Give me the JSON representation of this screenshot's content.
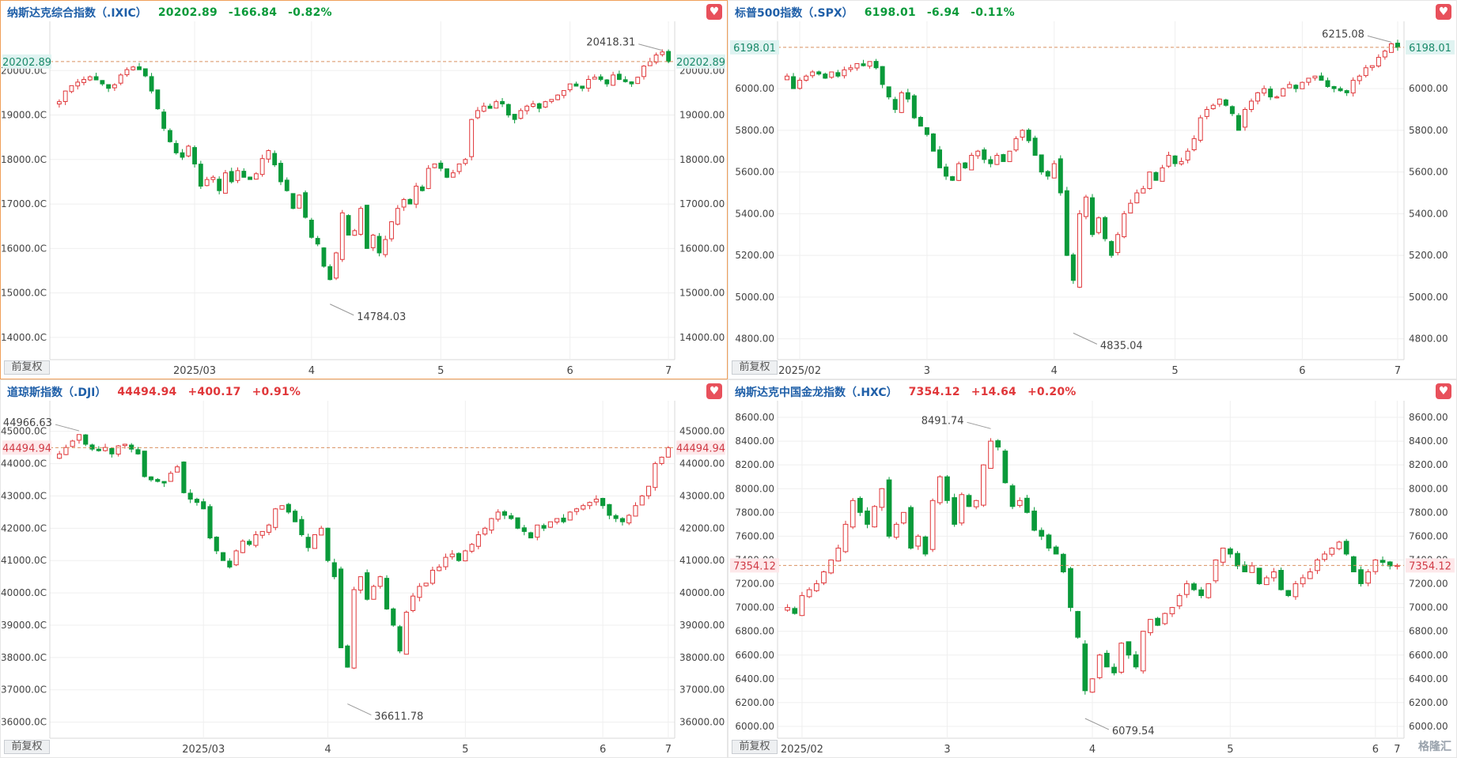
{
  "colors": {
    "up": "#e0373a",
    "down": "#0a9a3a",
    "grid": "#efefef",
    "last": "#d99060",
    "axis": "#444444"
  },
  "adjust_label": "前复权",
  "watermark": "格隆汇",
  "panels": [
    {
      "name": "纳斯达克综合指数（.IXIC）",
      "price": "20202.89",
      "change": "-166.84",
      "pct": "-0.82%",
      "dir": "down",
      "active": true,
      "high_label": "20418.31",
      "low_label": "14784.03",
      "last_label": "20202.89",
      "month_labels": [
        "2025/03",
        "4",
        "5",
        "6",
        "7"
      ],
      "chart_data": {
        "type": "candlestick",
        "ylim": [
          13500,
          21000
        ],
        "yticks": [
          14000,
          15000,
          16000,
          17000,
          18000,
          19000,
          20000
        ],
        "ytick_labels": [
          "14000.0C",
          "15000.0C",
          "16000.0C",
          "17000.0C",
          "18000.0C",
          "19000.0C",
          "20000.0C"
        ],
        "ytick_labels_right": [
          "14000.00",
          "15000.00",
          "16000.00",
          "17000.00",
          "18000.00",
          "19000.00",
          "20000.00"
        ],
        "last": 20202.89,
        "high": 20418.31,
        "low": 14784.03,
        "month_positions": [
          22,
          41,
          62,
          83,
          103
        ],
        "closes": [
          19300,
          19540,
          19660,
          19740,
          19800,
          19860,
          19790,
          19700,
          19600,
          19680,
          19900,
          20020,
          20080,
          20020,
          19880,
          19540,
          19140,
          18700,
          18400,
          18150,
          18050,
          18300,
          17900,
          17400,
          17550,
          17600,
          17300,
          17700,
          17500,
          17750,
          17600,
          17550,
          17680,
          18020,
          18200,
          17880,
          17500,
          17300,
          16900,
          17200,
          16700,
          16250,
          16100,
          15600,
          15300,
          15900,
          16800,
          16300,
          16400,
          16900,
          16000,
          16300,
          15900,
          16200,
          16600,
          16900,
          17100,
          17000,
          17400,
          17300,
          17800,
          17900,
          17800,
          17600,
          17700,
          17900,
          18000,
          18900,
          19100,
          19200,
          19150,
          19300,
          19250,
          19000,
          18900,
          19100,
          19200,
          19250,
          19150,
          19300,
          19350,
          19450,
          19550,
          19700,
          19650,
          19600,
          19800,
          19850,
          19800,
          19700,
          19900,
          19800,
          19750,
          19700,
          19850,
          20100,
          20200,
          20350,
          20418,
          20202
        ],
        "point_count": 100
      }
    },
    {
      "name": "标普500指数（.SPX）",
      "price": "6198.01",
      "change": "-6.94",
      "pct": "-0.11%",
      "dir": "down",
      "active": false,
      "high_label": "6215.08",
      "low_label": "4835.04",
      "last_label": "6198.01",
      "month_labels": [
        "2025/02",
        "3",
        "4",
        "5",
        "6",
        "7"
      ],
      "chart_data": {
        "type": "candlestick",
        "ylim": [
          4700,
          6300
        ],
        "yticks": [
          4800,
          5000,
          5200,
          5400,
          5600,
          5800,
          6000
        ],
        "ytick_labels": [
          "4800.00",
          "5000.00",
          "5200.00",
          "5400.00",
          "5600.00",
          "5800.00",
          "6000.00"
        ],
        "ytick_labels_right": [
          "4800.00",
          "5000.00",
          "5200.00",
          "5400.00",
          "5600.00",
          "5800.00",
          "6000.00"
        ],
        "last": 6198.01,
        "high": 6215.08,
        "low": 4835.04,
        "month_positions": [
          2,
          22,
          42,
          61,
          81,
          101
        ],
        "closes": [
          6060,
          6000,
          6040,
          6060,
          6080,
          6070,
          6050,
          6080,
          6060,
          6090,
          6100,
          6120,
          6110,
          6130,
          6100,
          6020,
          5960,
          5900,
          5980,
          5950,
          5860,
          5820,
          5780,
          5700,
          5620,
          5580,
          5560,
          5640,
          5620,
          5680,
          5700,
          5660,
          5640,
          5680,
          5650,
          5700,
          5760,
          5800,
          5750,
          5680,
          5600,
          5580,
          5640,
          5500,
          5200,
          5080,
          5400,
          5480,
          5300,
          5380,
          5280,
          5200,
          5300,
          5400,
          5450,
          5500,
          5520,
          5600,
          5560,
          5620,
          5680,
          5640,
          5650,
          5700,
          5760,
          5860,
          5900,
          5920,
          5950,
          5920,
          5880,
          5800,
          5900,
          5940,
          5980,
          6000,
          5960,
          5960,
          6000,
          6020,
          6000,
          6030,
          6050,
          6060,
          6040,
          6010,
          6000,
          5990,
          5980,
          6040,
          6060,
          6100,
          6110,
          6150,
          6180,
          6215,
          6198
        ],
        "point_count": 97
      }
    },
    {
      "name": "道琼斯指数（.DJI）",
      "price": "44494.94",
      "change": "+400.17",
      "pct": "+0.91%",
      "dir": "up",
      "active": false,
      "high_label": "44966.63",
      "low_label": "36611.78",
      "last_label": "44494.94",
      "month_labels": [
        "2025/03",
        "4",
        "5",
        "6",
        "7"
      ],
      "chart_data": {
        "type": "candlestick",
        "ylim": [
          35500,
          45800
        ],
        "yticks": [
          36000,
          37000,
          38000,
          39000,
          40000,
          41000,
          42000,
          43000,
          44000,
          45000
        ],
        "ytick_labels": [
          "36000.0C",
          "37000.0C",
          "38000.0C",
          "39000.0C",
          "40000.0C",
          "41000.0C",
          "42000.0C",
          "43000.0C",
          "44000.0C",
          "45000.0C"
        ],
        "ytick_labels_right": [
          "36000.00",
          "37000.00",
          "38000.00",
          "39000.00",
          "40000.00",
          "41000.00",
          "42000.00",
          "43000.00",
          "44000.00",
          "45000.00"
        ],
        "last": 44494.94,
        "high": 44966.63,
        "low": 36611.78,
        "month_positions": [
          22,
          41,
          62,
          83,
          103
        ],
        "closes": [
          44300,
          44500,
          44700,
          44900,
          44600,
          44450,
          44400,
          44500,
          44300,
          44550,
          44600,
          44450,
          44300,
          43600,
          43500,
          43450,
          43400,
          43700,
          43900,
          43100,
          42900,
          42800,
          42600,
          41700,
          41300,
          41000,
          40800,
          41300,
          41600,
          41500,
          41800,
          41900,
          42100,
          42600,
          42700,
          42500,
          42200,
          41800,
          41400,
          41800,
          42000,
          41000,
          40500,
          38300,
          37700,
          40100,
          40500,
          39800,
          40200,
          40500,
          39500,
          39000,
          38200,
          39400,
          39900,
          40200,
          40300,
          40700,
          40800,
          41100,
          41200,
          41000,
          41300,
          41500,
          41800,
          42000,
          42300,
          42500,
          42400,
          42300,
          42000,
          41900,
          41700,
          42100,
          42000,
          42200,
          42300,
          42200,
          42500,
          42600,
          42700,
          42800,
          42900,
          42700,
          42400,
          42300,
          42200,
          42400,
          42700,
          43000,
          43300,
          44000,
          44200,
          44494
        ],
        "point_count": 94
      }
    },
    {
      "name": "纳斯达克中国金龙指数（.HXC）",
      "price": "7354.12",
      "change": "+14.64",
      "pct": "+0.20%",
      "dir": "up",
      "active": false,
      "high_label": "8491.74",
      "low_label": "6079.54",
      "last_label": "7354.12",
      "month_labels": [
        "2025/02",
        "3",
        "4",
        "5",
        "6",
        "7"
      ],
      "chart_data": {
        "type": "candlestick",
        "ylim": [
          5900,
          8700
        ],
        "yticks": [
          6000,
          6200,
          6400,
          6600,
          6800,
          7000,
          7200,
          7400,
          7600,
          7800,
          8000,
          8200,
          8400,
          8600
        ],
        "ytick_labels": [
          "6000.00",
          "6200.00",
          "6400.00",
          "6600.00",
          "6800.00",
          "7000.00",
          "7200.00",
          "7400.00",
          "7600.00",
          "7800.00",
          "8000.00",
          "8200.00",
          "8400.00",
          "8600.00"
        ],
        "ytick_labels_right": [
          "6000.00",
          "6200.00",
          "6400.00",
          "6600.00",
          "6800.00",
          "7000.00",
          "7200.00",
          "7400.00",
          "7600.00",
          "7800.00",
          "8000.00",
          "8200.00",
          "8400.00",
          "8600.00"
        ],
        "last": 7354.12,
        "high": 8491.74,
        "low": 6079.54,
        "month_positions": [
          2,
          22,
          42,
          61,
          81,
          101
        ],
        "closes": [
          7000,
          6950,
          7100,
          7150,
          7200,
          7300,
          7400,
          7500,
          7700,
          7900,
          7800,
          7700,
          7850,
          8000,
          7600,
          7700,
          7800,
          7500,
          7600,
          7450,
          7900,
          8100,
          7900,
          7700,
          7950,
          7850,
          7900,
          8200,
          8400,
          8350,
          8050,
          7850,
          7900,
          7800,
          7650,
          7600,
          7500,
          7450,
          7300,
          7000,
          6750,
          6300,
          6400,
          6600,
          6500,
          6450,
          6700,
          6600,
          6500,
          6800,
          6900,
          6850,
          6950,
          7000,
          7100,
          7200,
          7150,
          7100,
          7200,
          7400,
          7500,
          7450,
          7350,
          7300,
          7350,
          7200,
          7250,
          7300,
          7150,
          7100,
          7200,
          7250,
          7300,
          7400,
          7450,
          7500,
          7550,
          7450,
          7300,
          7200,
          7300,
          7400,
          7380,
          7350,
          7354
        ],
        "point_count": 85
      }
    }
  ]
}
